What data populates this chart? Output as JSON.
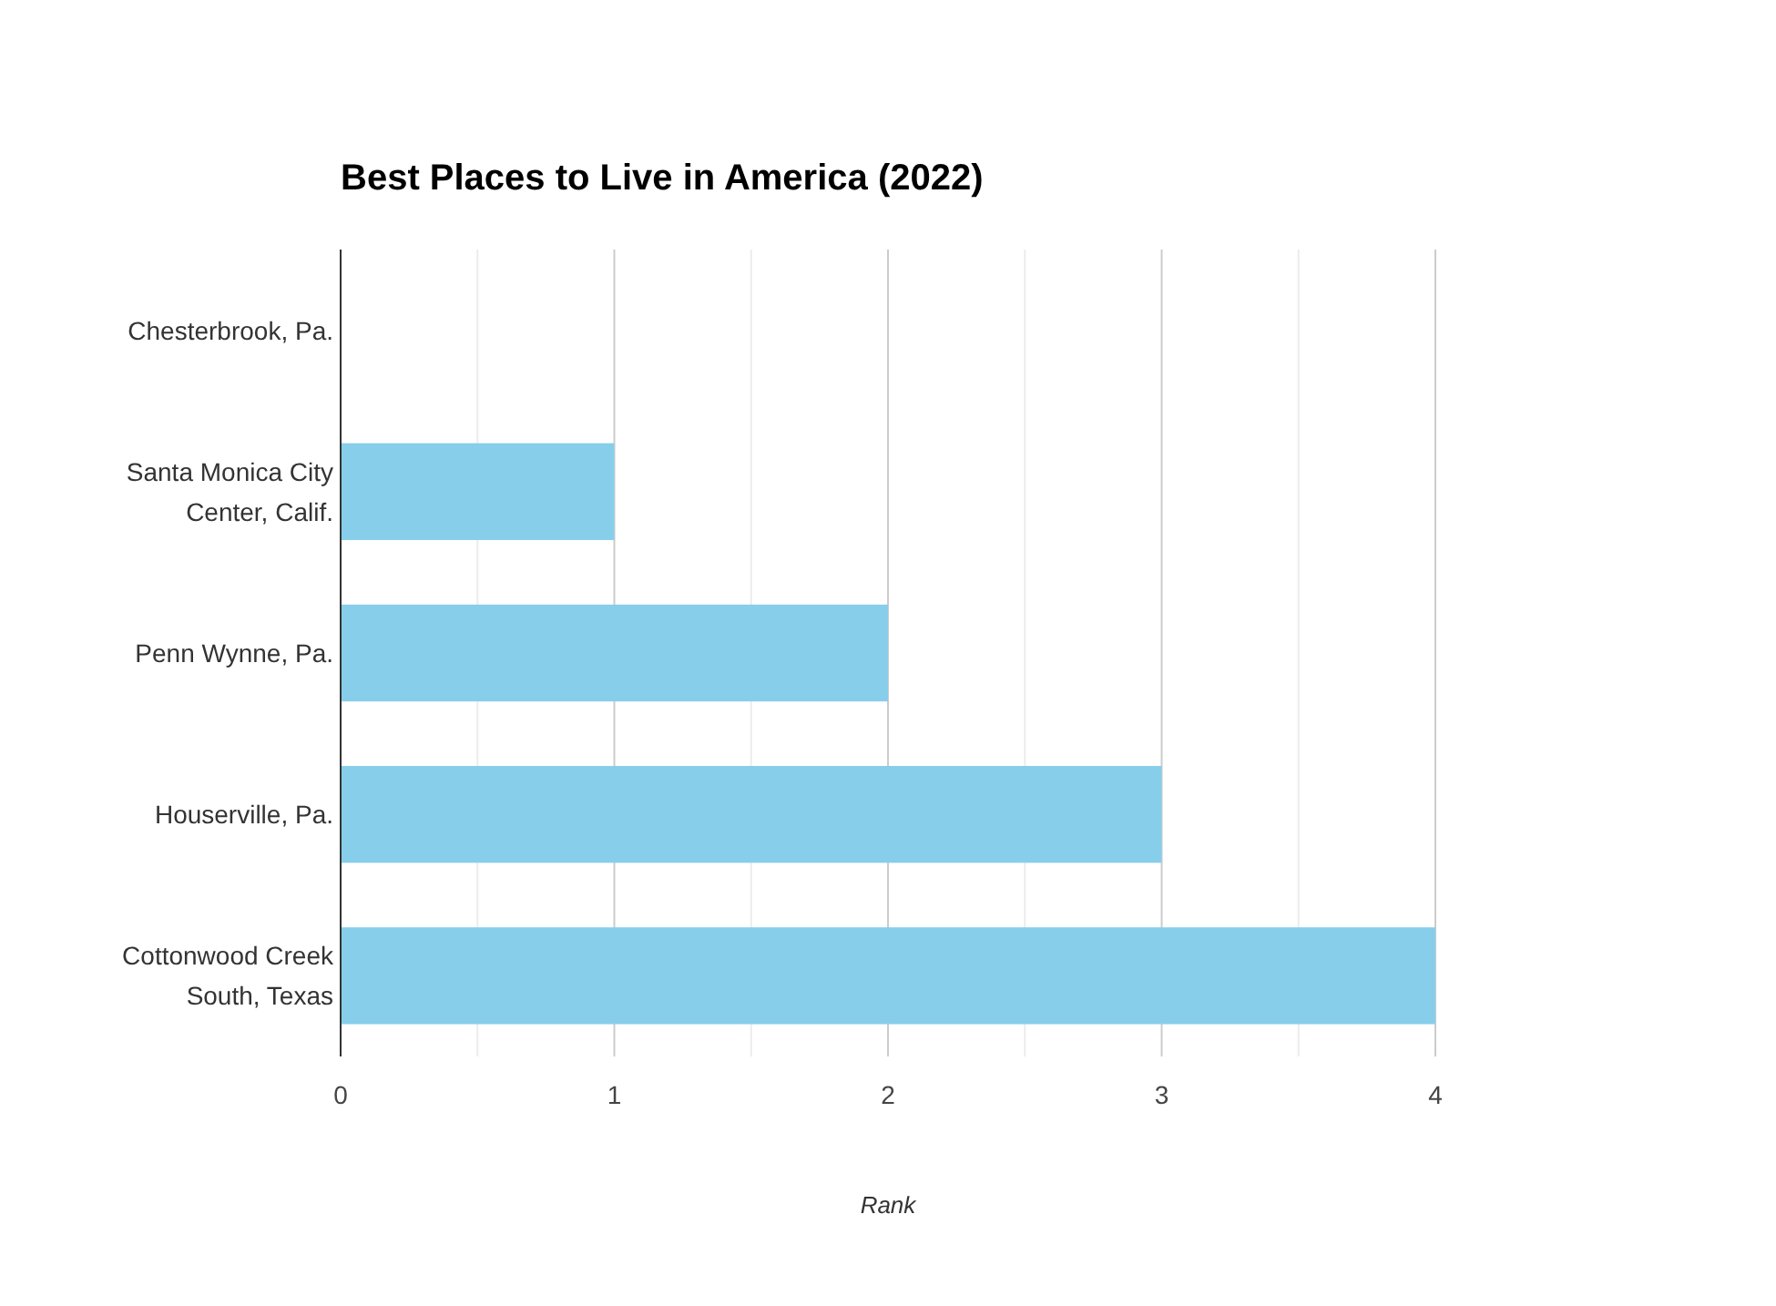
{
  "chart_data": {
    "type": "bar",
    "orientation": "horizontal",
    "title": "Best Places to Live in America (2022)",
    "xlabel": "Rank",
    "categories": [
      "Chesterbrook, Pa.",
      "Santa Monica City Center, Calif.",
      "Penn Wynne, Pa.",
      "Houserville, Pa.",
      "Cottonwood Creek South, Texas"
    ],
    "values": [
      0,
      1,
      2,
      3,
      4
    ],
    "color": "#87ceeb",
    "xlim": [
      0,
      4
    ],
    "xticks": [
      0,
      {
        "value": 0.5,
        "label": null
      },
      1,
      {
        "value": 1.5,
        "label": null
      },
      2,
      {
        "value": 2.5,
        "label": null
      },
      3,
      {
        "value": 3.5,
        "label": null
      },
      4
    ],
    "grid": "x"
  }
}
